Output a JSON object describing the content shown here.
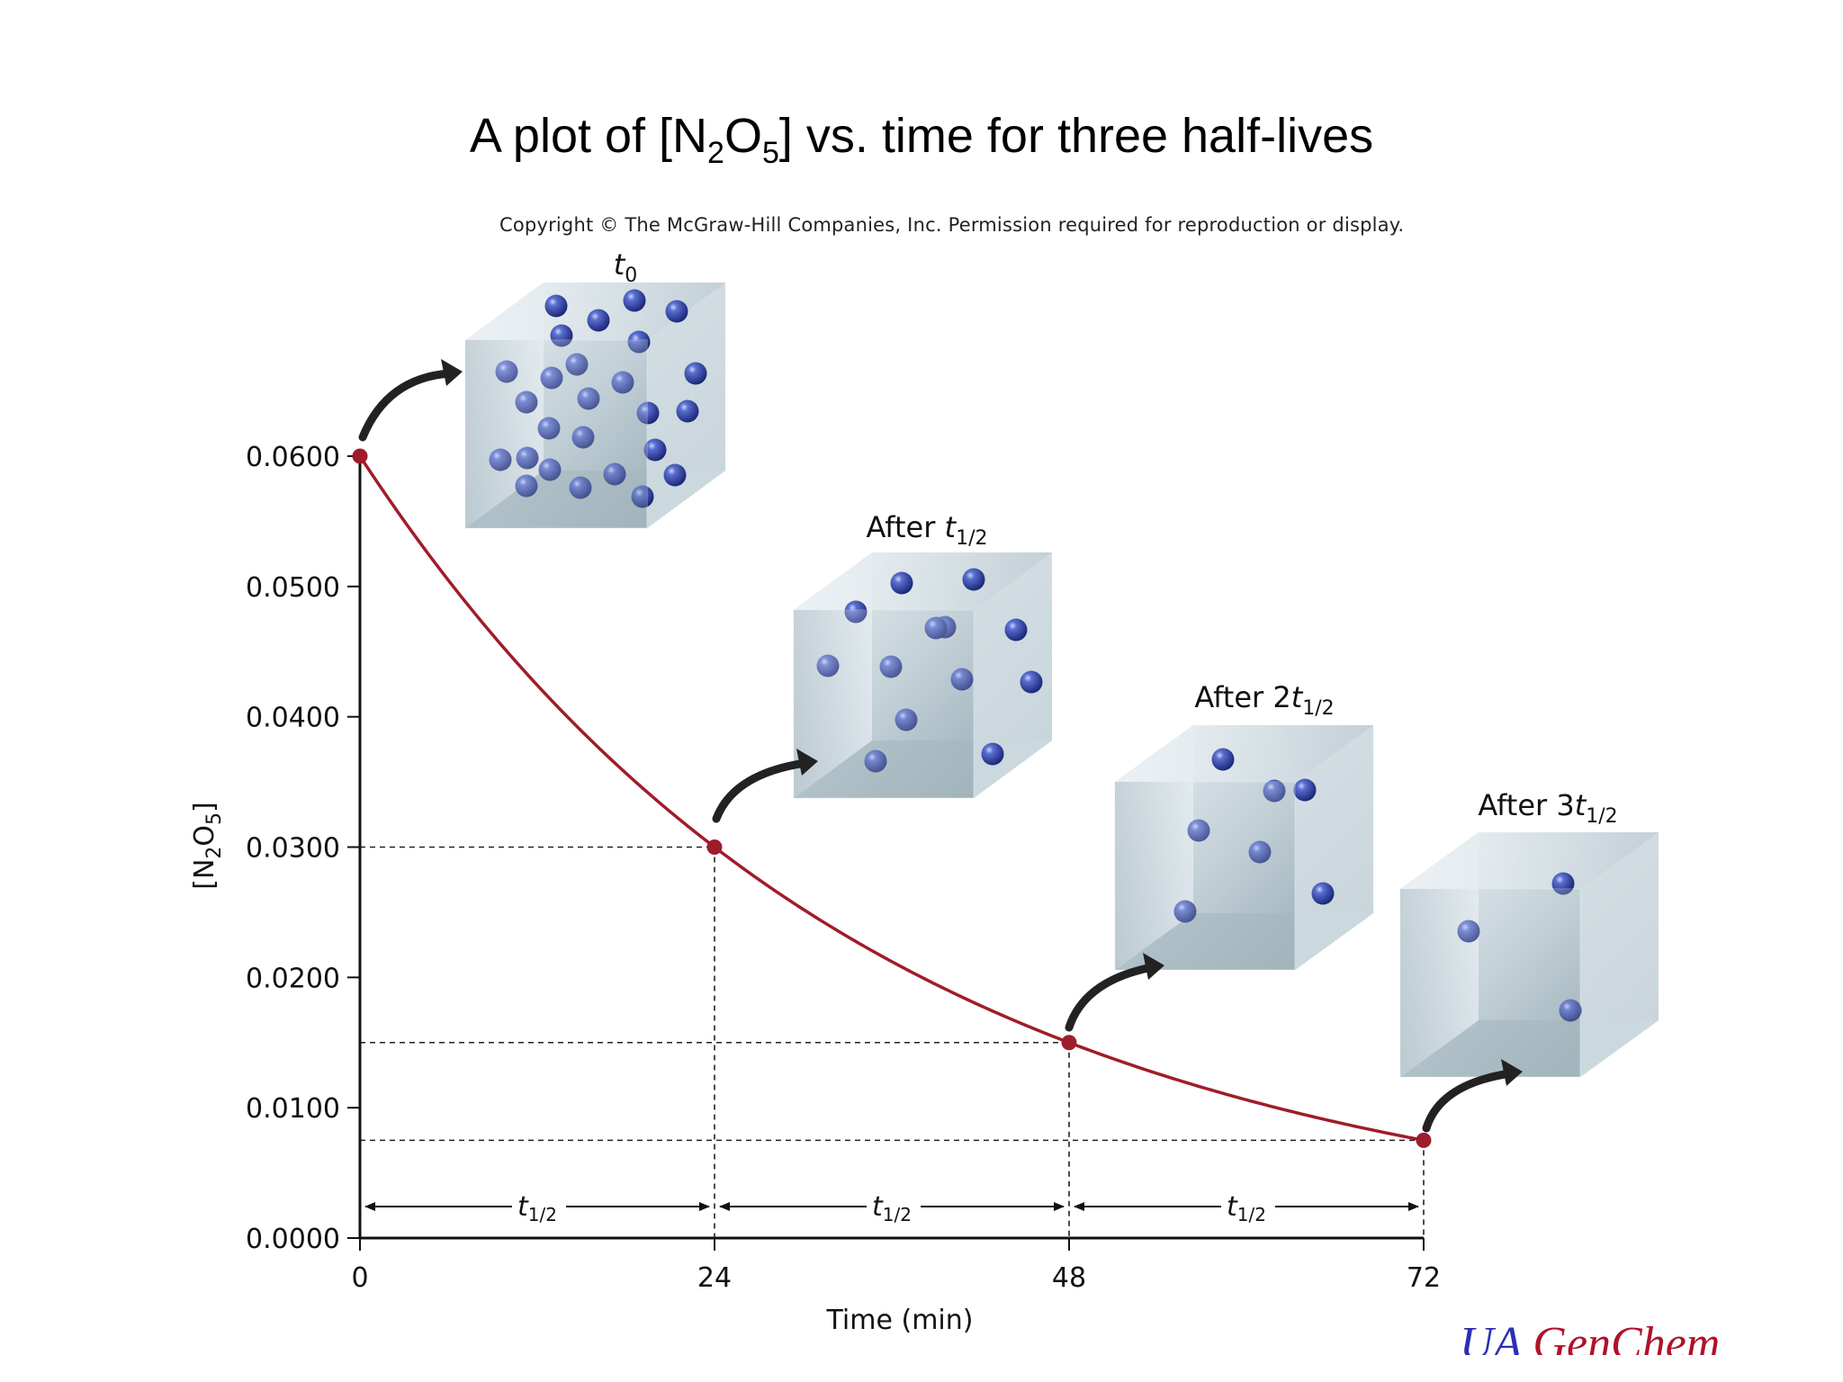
{
  "slide": {
    "title_prefix": "A plot of [N",
    "title_sub1": "2",
    "title_mid": "O",
    "title_sub2": "5",
    "title_suffix": "] vs. time for three half-lives",
    "copyright": "Copyright © The McGraw-Hill Companies, Inc. Permission required for reproduction or display.",
    "brand_part1": "UA ",
    "brand_part2": "GenChem",
    "brand_colors": {
      "blue": "#2b2fb5",
      "red": "#b0122a"
    }
  },
  "chart_data": {
    "type": "line",
    "xlabel": "Time (min)",
    "ylabel_main": "[N",
    "ylabel_sub1": "2",
    "ylabel_mid": "O",
    "ylabel_sub2": "5",
    "ylabel_end": "]",
    "x_ticks": [
      "0",
      "24",
      "48",
      "72"
    ],
    "y_ticks": [
      "0.0000",
      "0.0100",
      "0.0200",
      "0.0300",
      "0.0400",
      "0.0500",
      "0.0600"
    ],
    "xlim": [
      0,
      72
    ],
    "ylim": [
      0,
      0.06
    ],
    "curve": {
      "initial": 0.06,
      "half_life": 24
    },
    "points": [
      {
        "x": 0,
        "y": 0.06
      },
      {
        "x": 24,
        "y": 0.03
      },
      {
        "x": 48,
        "y": 0.015
      },
      {
        "x": 72,
        "y": 0.0075
      }
    ],
    "half_life_label_main": "t",
    "half_life_label_sub": "1/2",
    "panels": [
      {
        "label_main": "t",
        "label_sub": "0",
        "prefix": "",
        "molecules": 26
      },
      {
        "label_main": "t",
        "label_sub": "1/2",
        "prefix": "After ",
        "molecules": 13
      },
      {
        "label_main": "t",
        "label_sub": "1/2",
        "prefix": "After 2",
        "molecules": 7
      },
      {
        "label_main": "t",
        "label_sub": "1/2",
        "prefix": "After 3",
        "molecules": 3
      }
    ],
    "colors": {
      "curve": "#a01c2a",
      "point": "#a01c2a",
      "molecule": "#2b3f9e",
      "axis": "#111111"
    },
    "grid": false
  }
}
